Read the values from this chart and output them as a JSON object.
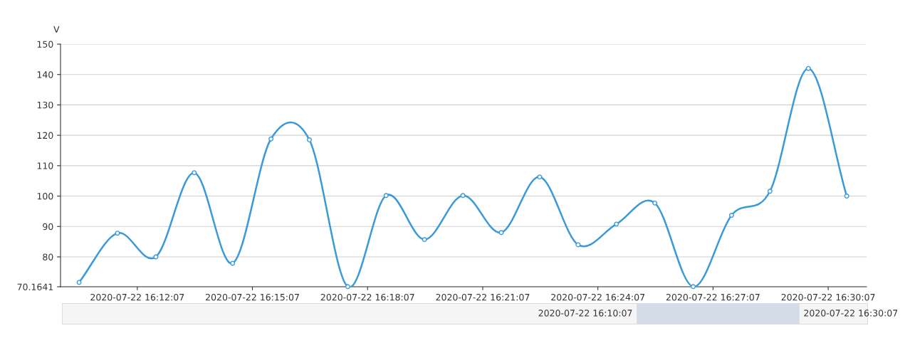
{
  "chart_data": {
    "type": "line",
    "ylabel": "V",
    "x": [
      "2020-07-22T16:10:36",
      "2020-07-22T16:11:36",
      "2020-07-22T16:12:36",
      "2020-07-22T16:13:36",
      "2020-07-22T16:14:36",
      "2020-07-22T16:15:36",
      "2020-07-22T16:16:36",
      "2020-07-22T16:17:36",
      "2020-07-22T16:18:36",
      "2020-07-22T16:19:36",
      "2020-07-22T16:20:36",
      "2020-07-22T16:21:36",
      "2020-07-22T16:22:36",
      "2020-07-22T16:23:36",
      "2020-07-22T16:24:36",
      "2020-07-22T16:25:36",
      "2020-07-22T16:26:36",
      "2020-07-22T16:27:36",
      "2020-07-22T16:28:36",
      "2020-07-22T16:29:36",
      "2020-07-22T16:30:36"
    ],
    "series": [
      {
        "color": "#3a9ad9",
        "values": [
          71.6,
          87.8,
          80,
          107.7,
          77.9,
          118.8,
          118.5,
          70.2,
          100.2,
          85.7,
          100.2,
          88.0,
          106.3,
          84.0,
          90.8,
          97.7,
          70.2,
          93.7,
          101.6,
          142.0,
          100
        ]
      }
    ],
    "xlim": [
      "2020-07-22T16:10:07",
      "2020-07-22T16:31:07"
    ],
    "xticks": [
      {
        "value": "2020-07-22T16:12:07",
        "label": "2020-07-22 16:12:07"
      },
      {
        "value": "2020-07-22T16:15:07",
        "label": "2020-07-22 16:15:07"
      },
      {
        "value": "2020-07-22T16:18:07",
        "label": "2020-07-22 16:18:07"
      },
      {
        "value": "2020-07-22T16:21:07",
        "label": "2020-07-22 16:21:07"
      },
      {
        "value": "2020-07-22T16:24:07",
        "label": "2020-07-22 16:24:07"
      },
      {
        "value": "2020-07-22T16:27:07",
        "label": "2020-07-22 16:27:07"
      },
      {
        "value": "2020-07-22T16:30:07",
        "label": "2020-07-22 16:30:07"
      }
    ],
    "ylim": [
      70.1641,
      150
    ],
    "yticks": [
      70.1641,
      80,
      90,
      100,
      110,
      120,
      130,
      140,
      150
    ],
    "grid": "y",
    "marker": "circle",
    "line_style": "solid",
    "annotations": [
      "2020-07-22 16:10:07",
      "2020-07-22 16:30:07"
    ]
  }
}
